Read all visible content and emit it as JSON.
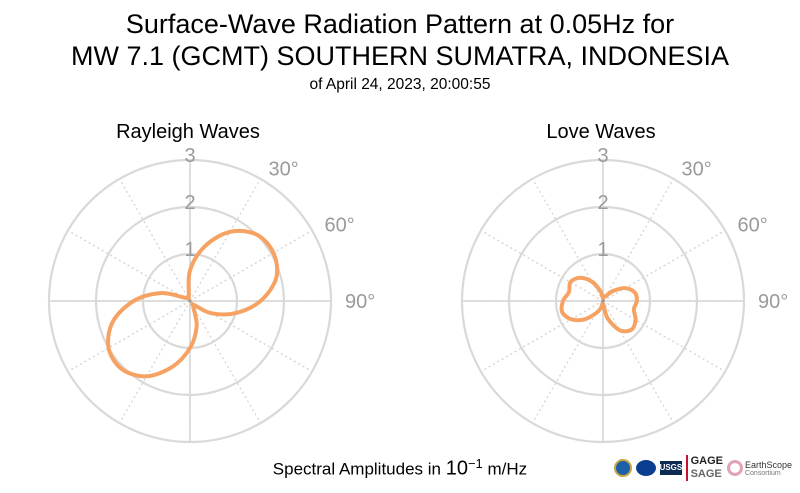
{
  "header": {
    "title_line1": "Surface-Wave Radiation Pattern at 0.05Hz for",
    "title_line2": "MW 7.1 (GCMT) SOUTHERN SUMATRA, INDONESIA",
    "subtitle": "of April 24, 2023, 20:00:55"
  },
  "footer": {
    "label_prefix": "Spectral Amplitudes in ",
    "label_base": "10",
    "label_exp": "−1",
    "label_unit": " m/Hz"
  },
  "logos": {
    "usgs": "USGS",
    "gage_line1": "GAGE",
    "gage_line2": "SAGE",
    "earthscope": "EarthScope",
    "earthscope_sub": "Consortium"
  },
  "chart_data": [
    {
      "type": "polar-line",
      "title": "Rayleigh Waves",
      "radial_ticks": [
        1,
        2,
        3
      ],
      "radial_lim": [
        0,
        3
      ],
      "angle_ticks": [
        "30°",
        "60°",
        "90°"
      ],
      "angle_zero": "top",
      "direction": "clockwise",
      "grid": true,
      "line_color": "#f5a263",
      "series": [
        {
          "theta_deg": [
            0,
            15,
            30,
            45,
            60,
            75,
            90,
            105,
            120,
            135,
            150,
            165,
            180,
            195,
            210,
            225,
            240,
            255,
            270,
            285,
            300,
            315,
            330,
            345,
            360
          ],
          "r": [
            0.65,
            1.2,
            1.7,
            2.0,
            2.05,
            1.9,
            1.5,
            1.0,
            0.52,
            0.12,
            0.14,
            0.55,
            1.0,
            1.45,
            1.85,
            2.05,
            2.0,
            1.7,
            1.2,
            0.65,
            0.15,
            0.1,
            0.08,
            0.1,
            0.65
          ]
        }
      ]
    },
    {
      "type": "polar-line",
      "title": "Love Waves",
      "radial_ticks": [
        1,
        2,
        3
      ],
      "radial_lim": [
        0,
        3
      ],
      "angle_ticks": [
        "30°",
        "60°",
        "90°"
      ],
      "angle_zero": "top",
      "direction": "clockwise",
      "grid": true,
      "line_color": "#f5a263",
      "series": [
        {
          "theta_deg": [
            0,
            15,
            30,
            45,
            60,
            75,
            90,
            105,
            120,
            135,
            150,
            165,
            180,
            195,
            210,
            225,
            240,
            255,
            270,
            285,
            300,
            315,
            330,
            345,
            360
          ],
          "r": [
            0.06,
            0.1,
            0.12,
            0.3,
            0.55,
            0.7,
            0.72,
            0.68,
            0.8,
            0.86,
            0.72,
            0.38,
            0.06,
            0.15,
            0.3,
            0.55,
            0.78,
            0.9,
            0.85,
            0.75,
            0.8,
            0.7,
            0.48,
            0.22,
            0.06
          ]
        }
      ]
    }
  ]
}
